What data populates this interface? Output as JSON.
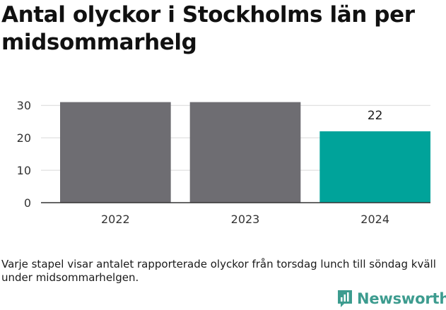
{
  "title": "Antal olyckor i Stockholms län per midsommarhelg",
  "note": "Varje stapel visar antalet rapporterade olyckor från torsdag lunch till söndag kväll under midsommarhelgen.",
  "logo": {
    "text": "Newsworthy",
    "icon": "newsworthy-chart-icon",
    "color": "#3d9c8f"
  },
  "chart_data": {
    "type": "bar",
    "categories": [
      "2022",
      "2023",
      "2024"
    ],
    "values": [
      31,
      31,
      22
    ],
    "data_labels": [
      null,
      null,
      "22"
    ],
    "colors": [
      "#6e6d72",
      "#6e6d72",
      "#00a39a"
    ],
    "title": "Antal olyckor i Stockholms län per midsommarhelg",
    "xlabel": "",
    "ylabel": "",
    "ylim": [
      0,
      32
    ],
    "yticks": [
      0,
      10,
      20,
      30
    ],
    "grid": true,
    "legend": "none"
  }
}
